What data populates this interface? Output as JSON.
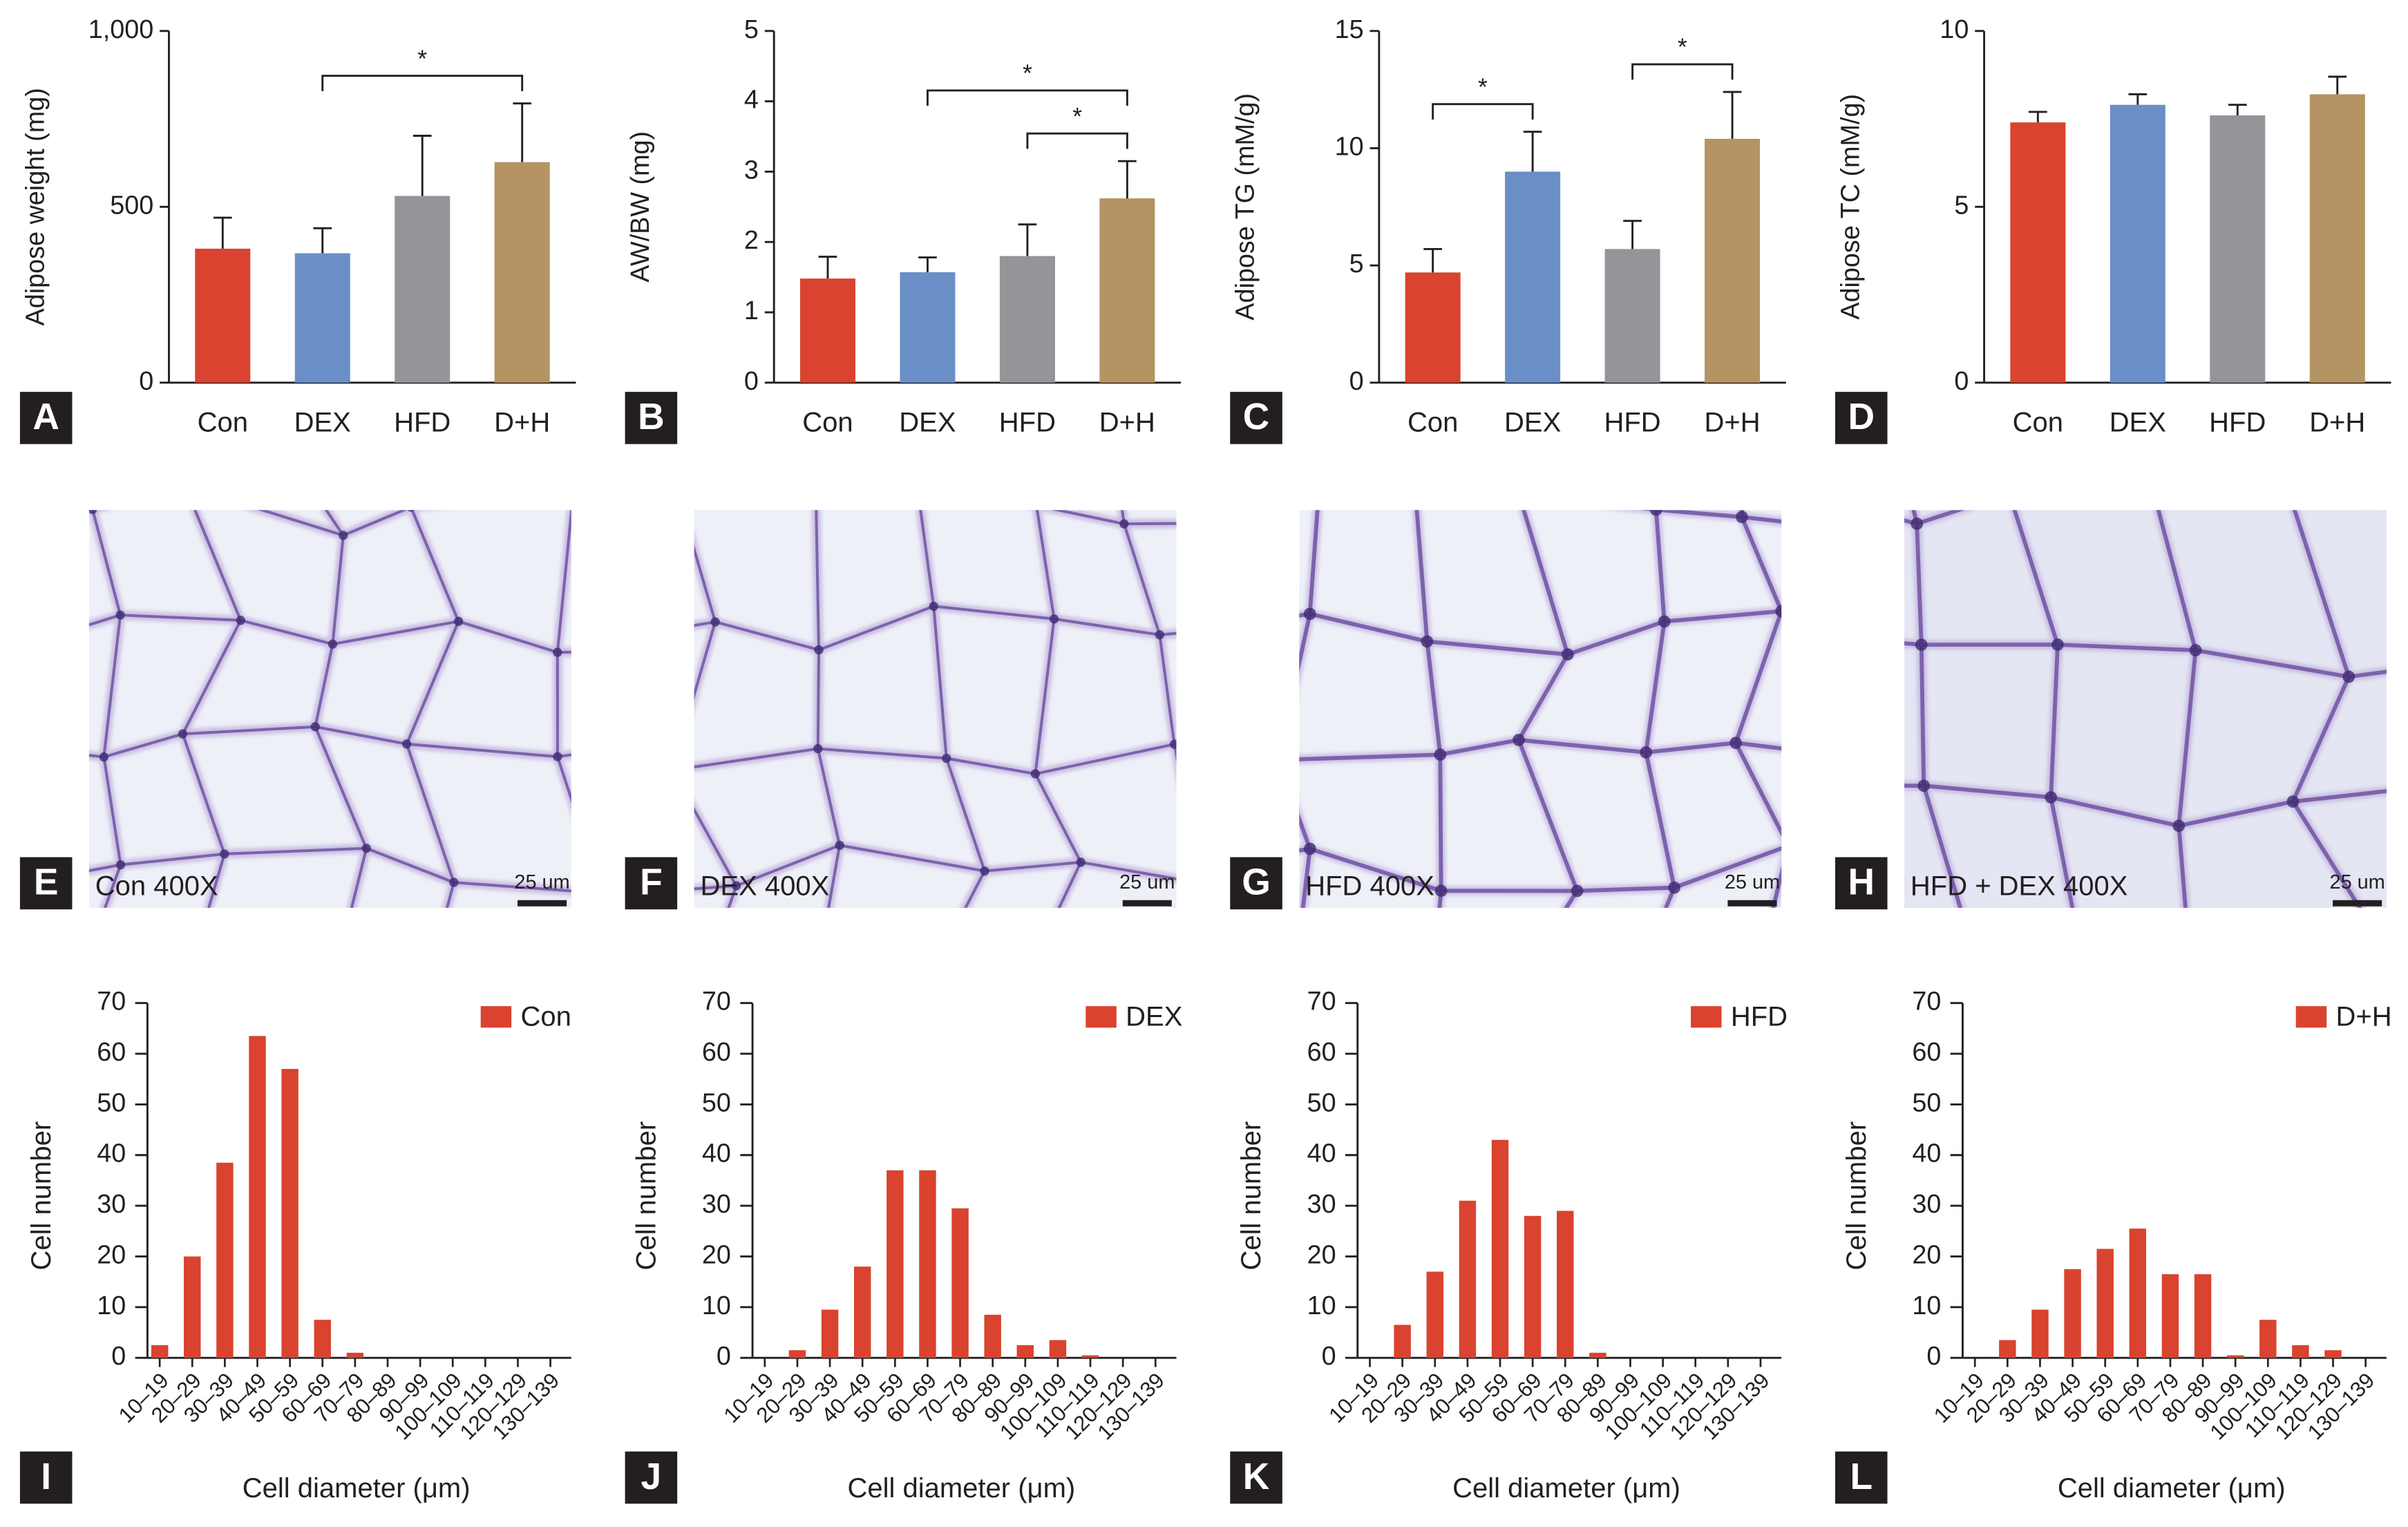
{
  "chart_data": [
    {
      "type": "bar",
      "panel": "A",
      "ylabel": "Adipose weight (mg)",
      "categories": [
        "Con",
        "DEX",
        "HFD",
        "D+H"
      ],
      "values": [
        381,
        368,
        531,
        627
      ],
      "errors": [
        88,
        71,
        171,
        167
      ],
      "colors": [
        "#d9432f",
        "#6a8fc7",
        "#939598",
        "#b49462"
      ],
      "ylim": [
        0,
        1000
      ],
      "yticks": [
        0,
        500,
        {
          "value": 1000,
          "label": "1,000"
        }
      ],
      "significance": [
        {
          "from": 1,
          "to": 3,
          "label": "*"
        }
      ]
    },
    {
      "type": "bar",
      "panel": "B",
      "ylabel": "AW/BW (mg)",
      "categories": [
        "Con",
        "DEX",
        "HFD",
        "D+H"
      ],
      "values": [
        1.48,
        1.57,
        1.8,
        2.62
      ],
      "errors": [
        0.31,
        0.21,
        0.45,
        0.53
      ],
      "colors": [
        "#d9432f",
        "#6a8fc7",
        "#939598",
        "#b49462"
      ],
      "ylim": [
        0,
        5
      ],
      "yticks": [
        0,
        1,
        2,
        3,
        4,
        5
      ],
      "significance": [
        {
          "from": 2,
          "to": 3,
          "label": "*"
        },
        {
          "from": 1,
          "to": 3,
          "label": "*"
        }
      ]
    },
    {
      "type": "bar",
      "panel": "C",
      "ylabel": "Adipose TG (mM/g)",
      "categories": [
        "Con",
        "DEX",
        "HFD",
        "D+H"
      ],
      "values": [
        4.7,
        9.0,
        5.7,
        10.4
      ],
      "errors": [
        1.0,
        1.7,
        1.2,
        2.0
      ],
      "colors": [
        "#d9432f",
        "#6a8fc7",
        "#939598",
        "#b49462"
      ],
      "ylim": [
        0,
        15
      ],
      "yticks": [
        0,
        5,
        10,
        15
      ],
      "significance": [
        {
          "from": 0,
          "to": 1,
          "label": "*"
        },
        {
          "from": 2,
          "to": 3,
          "label": "*"
        }
      ]
    },
    {
      "type": "bar",
      "panel": "D",
      "ylabel": "Adipose TC (mM/g)",
      "categories": [
        "Con",
        "DEX",
        "HFD",
        "D+H"
      ],
      "values": [
        7.4,
        7.9,
        7.6,
        8.2
      ],
      "errors": [
        0.3,
        0.3,
        0.3,
        0.5
      ],
      "colors": [
        "#d9432f",
        "#6a8fc7",
        "#939598",
        "#b49462"
      ],
      "ylim": [
        0,
        10
      ],
      "yticks": [
        0,
        5,
        10
      ],
      "significance": []
    },
    {
      "type": "bar",
      "panel": "I",
      "xlabel": "Cell diameter (μm)",
      "ylabel": "Cell number",
      "legend": "upper right",
      "categories": [
        "10–19",
        "20–29",
        "30–39",
        "40–49",
        "50–59",
        "60–69",
        "70–79",
        "80–89",
        "90–99",
        "100–109",
        "110–119",
        "120–129",
        "130–139"
      ],
      "series": [
        {
          "name": "Con",
          "color": "#d9432f",
          "values": [
            2.5,
            20,
            38.5,
            63.5,
            57,
            7.5,
            1,
            0,
            0,
            0,
            0,
            0,
            0
          ]
        }
      ],
      "ylim": [
        0,
        70
      ],
      "yticks": [
        0,
        10,
        20,
        30,
        40,
        50,
        60,
        70
      ]
    },
    {
      "type": "bar",
      "panel": "J",
      "xlabel": "Cell diameter (μm)",
      "ylabel": "Cell number",
      "legend": "upper right",
      "categories": [
        "10–19",
        "20–29",
        "30–39",
        "40–49",
        "50–59",
        "60–69",
        "70–79",
        "80–89",
        "90–99",
        "100–109",
        "110–119",
        "120–129",
        "130–139"
      ],
      "series": [
        {
          "name": "DEX",
          "color": "#d9432f",
          "values": [
            0,
            1.5,
            9.5,
            18,
            37,
            37,
            29.5,
            8.5,
            2.5,
            3.5,
            0.5,
            0,
            0
          ]
        }
      ],
      "ylim": [
        0,
        70
      ],
      "yticks": [
        0,
        10,
        20,
        30,
        40,
        50,
        60,
        70
      ]
    },
    {
      "type": "bar",
      "panel": "K",
      "xlabel": "Cell diameter (μm)",
      "ylabel": "Cell number",
      "legend": "upper right",
      "categories": [
        "10–19",
        "20–29",
        "30–39",
        "40–49",
        "50–59",
        "60–69",
        "70–79",
        "80–89",
        "90–99",
        "100–109",
        "110–119",
        "120–129",
        "130–139"
      ],
      "series": [
        {
          "name": "HFD",
          "color": "#d9432f",
          "values": [
            0,
            6.5,
            17,
            31,
            43,
            28,
            29,
            1,
            0,
            0,
            0,
            0,
            0
          ]
        }
      ],
      "ylim": [
        0,
        70
      ],
      "yticks": [
        0,
        10,
        20,
        30,
        40,
        50,
        60,
        70
      ]
    },
    {
      "type": "bar",
      "panel": "L",
      "xlabel": "Cell diameter (μm)",
      "ylabel": "Cell number",
      "legend": "upper right",
      "categories": [
        "10–19",
        "20–29",
        "30–39",
        "40–49",
        "50–59",
        "60–69",
        "70–79",
        "80–89",
        "90–99",
        "100–109",
        "110–119",
        "120–129",
        "130–139"
      ],
      "series": [
        {
          "name": "D+H",
          "color": "#d9432f",
          "values": [
            0,
            3.5,
            9.5,
            17.5,
            21.5,
            25.5,
            16.5,
            16.5,
            0.5,
            7.5,
            2.5,
            1.5,
            0
          ]
        }
      ],
      "ylim": [
        0,
        70
      ],
      "yticks": [
        0,
        10,
        20,
        30,
        40,
        50,
        60,
        70
      ]
    }
  ],
  "images": [
    {
      "panel": "E",
      "caption": "Con 400X",
      "scale_bar": "25 um"
    },
    {
      "panel": "F",
      "caption": "DEX 400X",
      "scale_bar": "25 um"
    },
    {
      "panel": "G",
      "caption": "HFD 400X",
      "scale_bar": "25 um"
    },
    {
      "panel": "H",
      "caption": "HFD + DEX 400X",
      "scale_bar": "25 um"
    }
  ]
}
